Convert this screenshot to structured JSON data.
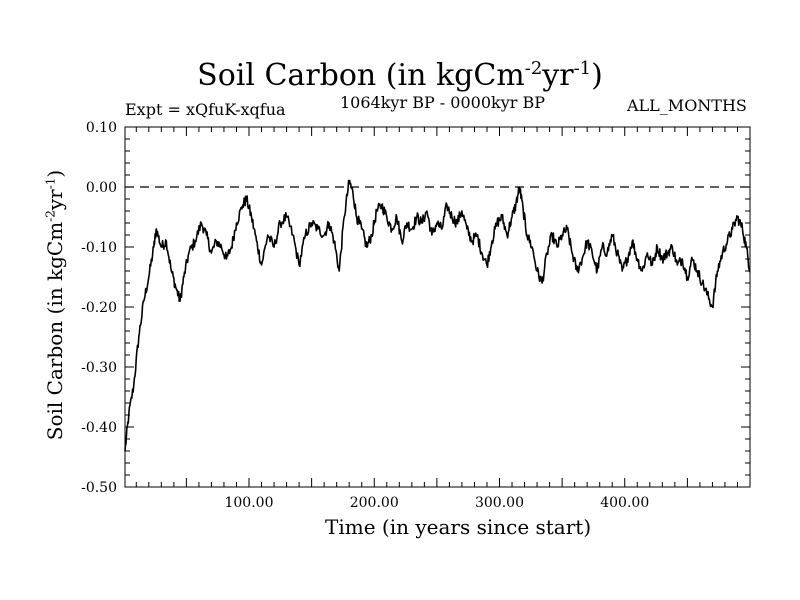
{
  "chart_data": {
    "type": "line",
    "title": "Soil Carbon (in kgCm",
    "title_sup1": "-2",
    "title_mid": "yr",
    "title_sup2": "-1",
    "title_end": ")",
    "subtitle_left": "Expt = xQfuK-xqfua",
    "subtitle_center": "1064kyr BP - 0000kyr BP",
    "subtitle_right": "ALL_MONTHS",
    "xlabel": "Time (in years since start)",
    "ylabel": "Soil Carbon (in kgCm",
    "ylabel_sup1": "-2",
    "ylabel_mid": "yr",
    "ylabel_sup2": "-1",
    "ylabel_end": ")",
    "xlim": [
      1,
      500
    ],
    "ylim": [
      -0.5,
      0.1
    ],
    "xticks": [
      100,
      200,
      300,
      400
    ],
    "xtick_labels": [
      "100.00",
      "200.00",
      "300.00",
      "400.00"
    ],
    "yticks": [
      0.1,
      0.0,
      -0.1,
      -0.2,
      -0.3,
      -0.4,
      -0.5
    ],
    "ytick_labels": [
      "0.10",
      "0.00",
      "-0.10",
      "-0.20",
      "-0.30",
      "-0.40",
      "-0.50"
    ],
    "reference_line": 0.0,
    "series": [
      {
        "name": "Soil Carbon",
        "color": "#000000",
        "points": [
          [
            1,
            -0.44
          ],
          [
            4,
            -0.38
          ],
          [
            8,
            -0.33
          ],
          [
            12,
            -0.25
          ],
          [
            16,
            -0.19
          ],
          [
            20,
            -0.15
          ],
          [
            24,
            -0.1
          ],
          [
            26,
            -0.07
          ],
          [
            30,
            -0.1
          ],
          [
            34,
            -0.09
          ],
          [
            38,
            -0.14
          ],
          [
            42,
            -0.17
          ],
          [
            45,
            -0.19
          ],
          [
            48,
            -0.15
          ],
          [
            52,
            -0.11
          ],
          [
            57,
            -0.09
          ],
          [
            62,
            -0.06
          ],
          [
            66,
            -0.08
          ],
          [
            70,
            -0.11
          ],
          [
            74,
            -0.09
          ],
          [
            78,
            -0.1
          ],
          [
            82,
            -0.12
          ],
          [
            86,
            -0.1
          ],
          [
            90,
            -0.06
          ],
          [
            95,
            -0.03
          ],
          [
            98,
            -0.02
          ],
          [
            102,
            -0.05
          ],
          [
            106,
            -0.09
          ],
          [
            110,
            -0.13
          ],
          [
            115,
            -0.08
          ],
          [
            120,
            -0.1
          ],
          [
            125,
            -0.06
          ],
          [
            130,
            -0.05
          ],
          [
            135,
            -0.08
          ],
          [
            140,
            -0.13
          ],
          [
            145,
            -0.08
          ],
          [
            150,
            -0.06
          ],
          [
            155,
            -0.07
          ],
          [
            160,
            -0.08
          ],
          [
            164,
            -0.06
          ],
          [
            168,
            -0.09
          ],
          [
            172,
            -0.14
          ],
          [
            176,
            -0.05
          ],
          [
            180,
            0.01
          ],
          [
            183,
            -0.01
          ],
          [
            186,
            -0.05
          ],
          [
            190,
            -0.07
          ],
          [
            194,
            -0.1
          ],
          [
            198,
            -0.08
          ],
          [
            202,
            -0.04
          ],
          [
            206,
            -0.03
          ],
          [
            210,
            -0.05
          ],
          [
            214,
            -0.07
          ],
          [
            218,
            -0.05
          ],
          [
            222,
            -0.09
          ],
          [
            226,
            -0.06
          ],
          [
            230,
            -0.07
          ],
          [
            234,
            -0.05
          ],
          [
            238,
            -0.06
          ],
          [
            242,
            -0.04
          ],
          [
            246,
            -0.08
          ],
          [
            250,
            -0.06
          ],
          [
            254,
            -0.07
          ],
          [
            258,
            -0.03
          ],
          [
            262,
            -0.05
          ],
          [
            266,
            -0.06
          ],
          [
            270,
            -0.04
          ],
          [
            274,
            -0.07
          ],
          [
            278,
            -0.09
          ],
          [
            282,
            -0.08
          ],
          [
            286,
            -0.11
          ],
          [
            290,
            -0.13
          ],
          [
            294,
            -0.09
          ],
          [
            298,
            -0.06
          ],
          [
            302,
            -0.05
          ],
          [
            306,
            -0.08
          ],
          [
            310,
            -0.05
          ],
          [
            313,
            -0.03
          ],
          [
            316,
            0.0
          ],
          [
            319,
            -0.04
          ],
          [
            322,
            -0.08
          ],
          [
            326,
            -0.1
          ],
          [
            330,
            -0.14
          ],
          [
            334,
            -0.16
          ],
          [
            338,
            -0.11
          ],
          [
            342,
            -0.08
          ],
          [
            346,
            -0.1
          ],
          [
            350,
            -0.08
          ],
          [
            354,
            -0.07
          ],
          [
            358,
            -0.11
          ],
          [
            362,
            -0.14
          ],
          [
            366,
            -0.12
          ],
          [
            370,
            -0.09
          ],
          [
            374,
            -0.11
          ],
          [
            378,
            -0.14
          ],
          [
            382,
            -0.1
          ],
          [
            386,
            -0.11
          ],
          [
            390,
            -0.08
          ],
          [
            394,
            -0.11
          ],
          [
            398,
            -0.14
          ],
          [
            402,
            -0.12
          ],
          [
            406,
            -0.09
          ],
          [
            410,
            -0.12
          ],
          [
            414,
            -0.14
          ],
          [
            418,
            -0.11
          ],
          [
            422,
            -0.13
          ],
          [
            426,
            -0.1
          ],
          [
            430,
            -0.12
          ],
          [
            434,
            -0.11
          ],
          [
            438,
            -0.1
          ],
          [
            442,
            -0.13
          ],
          [
            446,
            -0.12
          ],
          [
            450,
            -0.15
          ],
          [
            454,
            -0.12
          ],
          [
            458,
            -0.14
          ],
          [
            462,
            -0.16
          ],
          [
            466,
            -0.18
          ],
          [
            470,
            -0.2
          ],
          [
            474,
            -0.14
          ],
          [
            478,
            -0.11
          ],
          [
            482,
            -0.09
          ],
          [
            486,
            -0.07
          ],
          [
            490,
            -0.05
          ],
          [
            494,
            -0.07
          ],
          [
            497,
            -0.1
          ],
          [
            500,
            -0.14
          ]
        ]
      }
    ]
  }
}
